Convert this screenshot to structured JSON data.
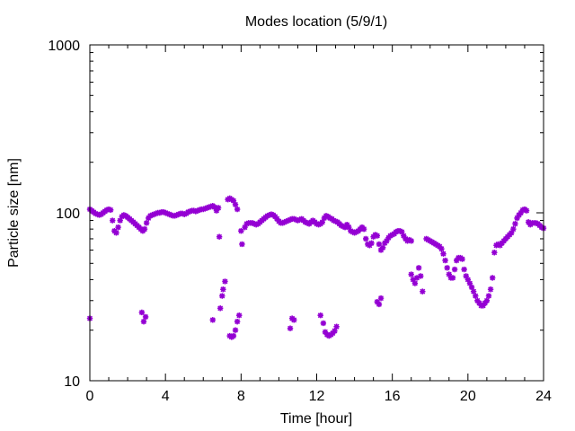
{
  "chart_data": {
    "type": "scatter",
    "title": "Modes location (5/9/1)",
    "xlabel": "Time [hour]",
    "ylabel": "Particle size [nm]",
    "xlim": [
      0,
      24
    ],
    "ylim": [
      10,
      1000
    ],
    "yscale": "log",
    "grid": false,
    "marker_color": "#9400d3",
    "marker": "asterisk",
    "x_ticks": [
      0,
      4,
      8,
      12,
      16,
      20,
      24
    ],
    "x_tick_labels": [
      "0",
      "4",
      "8",
      "12",
      "16",
      "20",
      "24"
    ],
    "y_ticks": [
      10,
      100,
      1000
    ],
    "y_tick_labels": [
      "10",
      "100",
      "1000"
    ],
    "series": [
      {
        "points": [
          [
            0.0,
            105
          ],
          [
            0.1,
            103
          ],
          [
            0.2,
            101
          ],
          [
            0.3,
            99
          ],
          [
            0.4,
            98
          ],
          [
            0.5,
            97
          ],
          [
            0.6,
            98
          ],
          [
            0.7,
            100
          ],
          [
            0.8,
            102
          ],
          [
            0.9,
            104
          ],
          [
            1.0,
            105
          ],
          [
            1.1,
            104
          ],
          [
            1.2,
            90
          ],
          [
            1.3,
            78
          ],
          [
            1.4,
            76
          ],
          [
            1.5,
            82
          ],
          [
            1.6,
            90
          ],
          [
            1.7,
            95
          ],
          [
            1.8,
            97
          ],
          [
            1.9,
            96
          ],
          [
            2.0,
            94
          ],
          [
            2.1,
            92
          ],
          [
            2.2,
            90
          ],
          [
            2.3,
            88
          ],
          [
            2.4,
            86
          ],
          [
            2.5,
            84
          ],
          [
            2.6,
            82
          ],
          [
            2.7,
            80
          ],
          [
            2.8,
            78
          ],
          [
            2.9,
            80
          ],
          [
            3.0,
            87
          ],
          [
            3.1,
            93
          ],
          [
            3.2,
            96
          ],
          [
            3.3,
            97
          ],
          [
            3.4,
            98
          ],
          [
            3.5,
            99
          ],
          [
            3.6,
            100
          ],
          [
            3.7,
            100
          ],
          [
            3.8,
            101
          ],
          [
            3.9,
            101
          ],
          [
            4.0,
            100
          ],
          [
            4.1,
            99
          ],
          [
            4.2,
            98
          ],
          [
            4.3,
            97
          ],
          [
            4.4,
            96
          ],
          [
            4.5,
            96
          ],
          [
            4.6,
            97
          ],
          [
            4.7,
            98
          ],
          [
            4.8,
            99
          ],
          [
            4.9,
            99
          ],
          [
            5.0,
            98
          ],
          [
            5.1,
            99
          ],
          [
            5.2,
            101
          ],
          [
            5.3,
            102
          ],
          [
            5.4,
            103
          ],
          [
            5.5,
            103
          ],
          [
            5.6,
            102
          ],
          [
            5.7,
            103
          ],
          [
            5.8,
            104
          ],
          [
            5.9,
            105
          ],
          [
            6.0,
            105
          ],
          [
            6.1,
            106
          ],
          [
            6.2,
            107
          ],
          [
            6.3,
            108
          ],
          [
            6.4,
            109
          ],
          [
            6.5,
            110
          ],
          [
            6.6,
            108
          ],
          [
            6.7,
            103
          ],
          [
            6.8,
            107
          ],
          [
            6.85,
            72
          ],
          [
            7.3,
            120
          ],
          [
            7.4,
            122
          ],
          [
            7.5,
            120
          ],
          [
            7.6,
            118
          ],
          [
            7.7,
            112
          ],
          [
            7.8,
            105
          ],
          [
            8.0,
            78
          ],
          [
            8.05,
            65
          ],
          [
            8.2,
            82
          ],
          [
            8.3,
            86
          ],
          [
            8.4,
            87
          ],
          [
            8.5,
            87
          ],
          [
            8.6,
            87
          ],
          [
            8.7,
            86
          ],
          [
            8.8,
            85
          ],
          [
            8.9,
            86
          ],
          [
            9.0,
            88
          ],
          [
            9.1,
            90
          ],
          [
            9.2,
            92
          ],
          [
            9.3,
            94
          ],
          [
            9.4,
            96
          ],
          [
            9.5,
            97
          ],
          [
            9.6,
            98
          ],
          [
            9.7,
            97
          ],
          [
            9.8,
            95
          ],
          [
            9.9,
            92
          ],
          [
            10.0,
            89
          ],
          [
            10.1,
            87
          ],
          [
            10.2,
            87
          ],
          [
            10.3,
            88
          ],
          [
            10.4,
            89
          ],
          [
            10.5,
            90
          ],
          [
            10.6,
            91
          ],
          [
            10.7,
            92
          ],
          [
            10.8,
            92
          ],
          [
            10.9,
            91
          ],
          [
            11.0,
            90
          ],
          [
            11.1,
            91
          ],
          [
            11.2,
            92
          ],
          [
            11.3,
            90
          ],
          [
            11.4,
            88
          ],
          [
            11.5,
            87
          ],
          [
            11.6,
            86
          ],
          [
            11.7,
            88
          ],
          [
            11.8,
            90
          ],
          [
            11.9,
            88
          ],
          [
            12.0,
            86
          ],
          [
            12.1,
            85
          ],
          [
            12.2,
            86
          ],
          [
            12.3,
            88
          ],
          [
            12.4,
            93
          ],
          [
            12.5,
            96
          ],
          [
            12.6,
            95
          ],
          [
            12.7,
            93
          ],
          [
            12.8,
            92
          ],
          [
            12.9,
            90
          ],
          [
            13.0,
            89
          ],
          [
            13.1,
            88
          ],
          [
            13.2,
            86
          ],
          [
            13.3,
            84
          ],
          [
            13.4,
            83
          ],
          [
            13.5,
            82
          ],
          [
            13.6,
            85
          ],
          [
            13.7,
            82
          ],
          [
            13.8,
            78
          ],
          [
            13.9,
            77
          ],
          [
            14.0,
            76
          ],
          [
            14.1,
            77
          ],
          [
            14.2,
            78
          ],
          [
            14.3,
            80
          ],
          [
            14.4,
            82
          ],
          [
            14.5,
            80
          ],
          [
            14.6,
            70
          ],
          [
            14.7,
            65
          ],
          [
            14.8,
            64
          ],
          [
            14.9,
            66
          ],
          [
            15.0,
            72
          ],
          [
            15.1,
            74
          ],
          [
            15.2,
            73
          ],
          [
            15.3,
            65
          ],
          [
            15.4,
            60
          ],
          [
            15.5,
            62
          ],
          [
            15.6,
            66
          ],
          [
            15.7,
            68
          ],
          [
            15.8,
            71
          ],
          [
            15.9,
            73
          ],
          [
            16.0,
            74
          ],
          [
            16.1,
            75
          ],
          [
            16.2,
            77
          ],
          [
            16.3,
            78
          ],
          [
            16.4,
            78
          ],
          [
            16.5,
            77
          ],
          [
            16.6,
            73
          ],
          [
            16.7,
            70
          ],
          [
            16.8,
            68
          ],
          [
            16.9,
            69
          ],
          [
            17.0,
            68
          ],
          [
            17.0,
            43
          ],
          [
            17.1,
            40
          ],
          [
            17.2,
            38
          ],
          [
            17.3,
            41
          ],
          [
            17.4,
            47
          ],
          [
            17.5,
            42
          ],
          [
            17.6,
            34
          ],
          [
            17.8,
            70
          ],
          [
            17.9,
            69
          ],
          [
            18.0,
            68
          ],
          [
            18.1,
            67
          ],
          [
            18.2,
            66
          ],
          [
            18.3,
            65
          ],
          [
            18.4,
            64
          ],
          [
            18.5,
            63
          ],
          [
            18.6,
            61
          ],
          [
            18.7,
            57
          ],
          [
            18.8,
            52
          ],
          [
            18.9,
            47
          ],
          [
            19.0,
            43
          ],
          [
            19.1,
            41
          ],
          [
            19.2,
            41
          ],
          [
            19.3,
            46
          ],
          [
            19.4,
            52
          ],
          [
            19.5,
            54
          ],
          [
            19.6,
            54
          ],
          [
            19.7,
            53
          ],
          [
            19.8,
            46
          ],
          [
            19.9,
            42
          ],
          [
            20.0,
            40
          ],
          [
            20.1,
            38
          ],
          [
            20.2,
            36
          ],
          [
            20.3,
            34
          ],
          [
            20.4,
            32
          ],
          [
            20.5,
            30
          ],
          [
            20.6,
            29
          ],
          [
            20.7,
            28
          ],
          [
            20.8,
            28
          ],
          [
            20.9,
            29
          ],
          [
            21.0,
            30
          ],
          [
            21.1,
            32
          ],
          [
            21.2,
            35
          ],
          [
            21.3,
            41
          ],
          [
            21.4,
            58
          ],
          [
            21.5,
            64
          ],
          [
            21.6,
            65
          ],
          [
            21.7,
            64
          ],
          [
            21.8,
            66
          ],
          [
            21.9,
            68
          ],
          [
            22.0,
            70
          ],
          [
            22.1,
            72
          ],
          [
            22.2,
            74
          ],
          [
            22.3,
            76
          ],
          [
            22.4,
            80
          ],
          [
            22.5,
            86
          ],
          [
            22.6,
            93
          ],
          [
            22.7,
            97
          ],
          [
            22.8,
            100
          ],
          [
            22.9,
            104
          ],
          [
            23.0,
            105
          ],
          [
            23.1,
            103
          ],
          [
            23.2,
            88
          ],
          [
            23.3,
            85
          ],
          [
            23.4,
            87
          ],
          [
            23.5,
            87
          ],
          [
            23.6,
            87
          ],
          [
            23.7,
            86
          ],
          [
            23.8,
            84
          ],
          [
            23.9,
            82
          ],
          [
            24.0,
            81
          ],
          [
            0.0,
            23.5
          ],
          [
            2.75,
            25.5
          ],
          [
            2.85,
            22.5
          ],
          [
            2.95,
            24
          ],
          [
            6.5,
            23
          ],
          [
            6.9,
            27
          ],
          [
            7.0,
            32
          ],
          [
            7.05,
            35
          ],
          [
            7.15,
            39
          ],
          [
            7.4,
            18.5
          ],
          [
            7.5,
            18.2
          ],
          [
            7.6,
            18.5
          ],
          [
            7.7,
            20
          ],
          [
            7.8,
            22.5
          ],
          [
            7.9,
            24.5
          ],
          [
            10.6,
            20.5
          ],
          [
            10.7,
            23.5
          ],
          [
            10.8,
            23
          ],
          [
            12.2,
            24.5
          ],
          [
            12.35,
            22
          ],
          [
            12.45,
            19.5
          ],
          [
            12.55,
            18.8
          ],
          [
            12.65,
            18.5
          ],
          [
            12.75,
            18.8
          ],
          [
            12.85,
            19.2
          ],
          [
            12.95,
            19.8
          ],
          [
            13.05,
            21
          ],
          [
            15.2,
            29.5
          ],
          [
            15.3,
            28.5
          ],
          [
            15.4,
            31
          ]
        ]
      }
    ]
  }
}
